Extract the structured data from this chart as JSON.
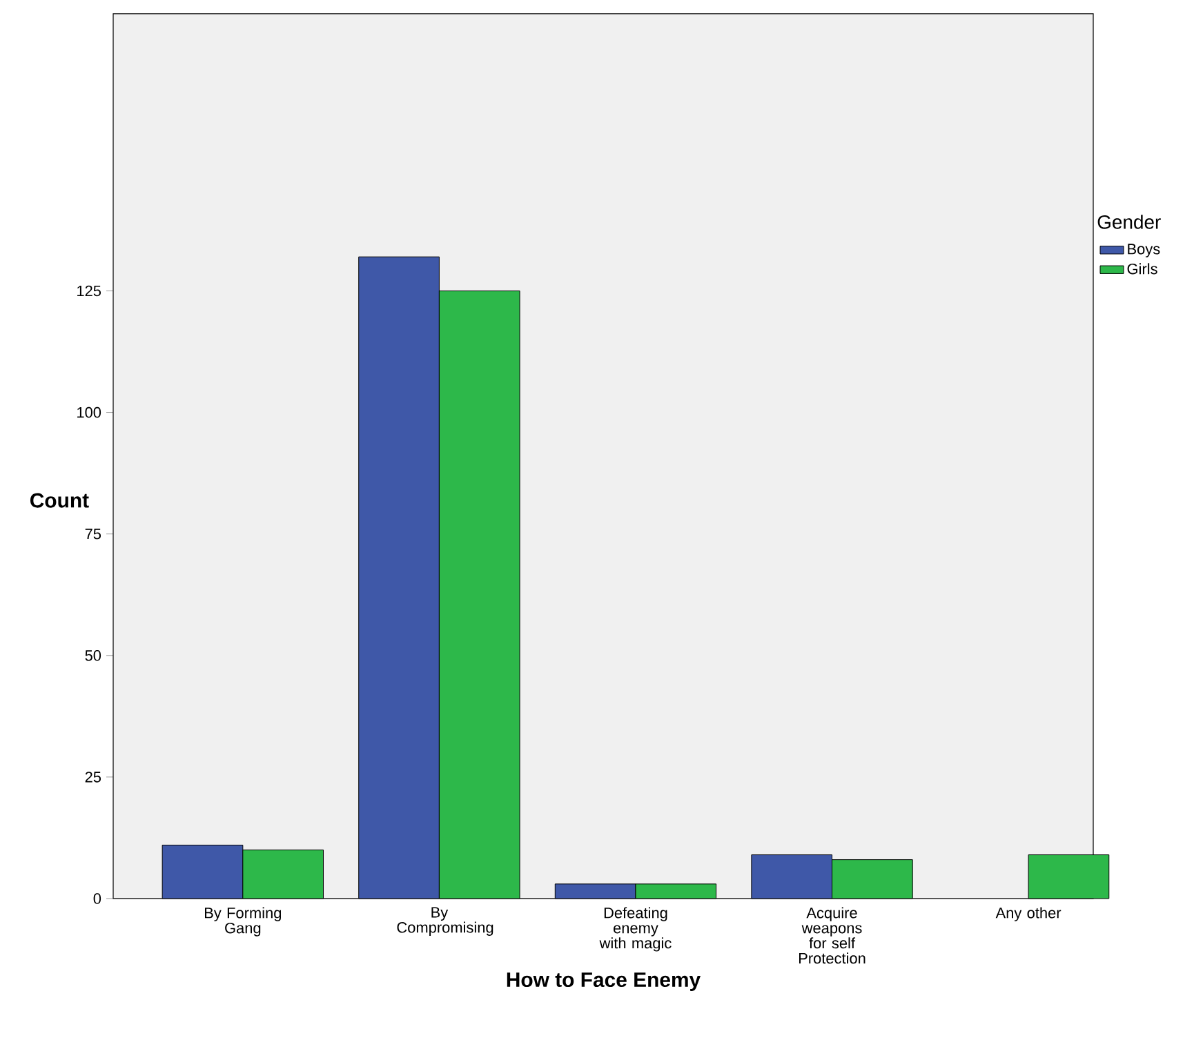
{
  "chart_data": {
    "type": "bar",
    "xlabel": "How to Face Enemy",
    "ylabel": "Count",
    "legend_title": "Gender",
    "categories": [
      "By Forming Gang",
      "By Compromising",
      "Defeating enemy with magic",
      "Acquire weapons for self Protection",
      "Any other"
    ],
    "series": [
      {
        "name": "Boys",
        "color": "#3f58a8",
        "values": [
          11,
          132,
          3,
          9,
          null
        ]
      },
      {
        "name": "Girls",
        "color": "#2db84a",
        "values": [
          10,
          125,
          3,
          8,
          9
        ]
      }
    ],
    "ylim": [
      0,
      182
    ],
    "yticks": [
      0,
      25,
      50,
      75,
      100,
      125
    ],
    "grid": false,
    "legend": "right"
  }
}
